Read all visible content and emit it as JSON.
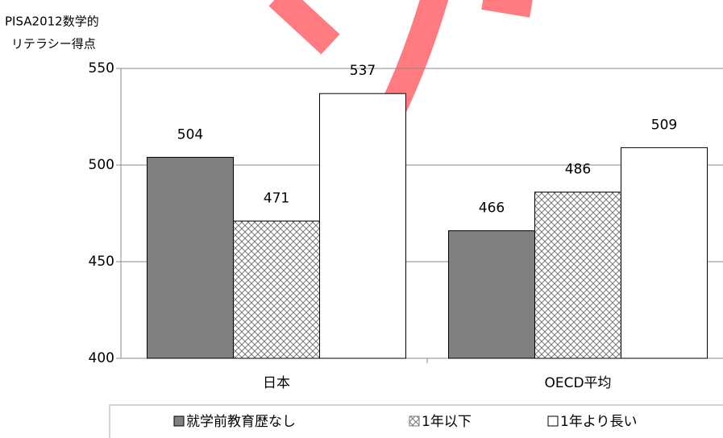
{
  "chart_data": {
    "type": "bar",
    "y_label_lines": [
      "PISA2012数学的",
      "リテラシー得点"
    ],
    "categories": [
      "日本",
      "OECD平均"
    ],
    "series": [
      {
        "name": "就学前教育歴なし",
        "color": "#808080",
        "hatch": false,
        "values": [
          504,
          466
        ]
      },
      {
        "name": "1年以下",
        "color": "#ffffff",
        "hatch": true,
        "values": [
          471,
          486
        ]
      },
      {
        "name": "1年より長い",
        "color": "#ffffff",
        "hatch": false,
        "values": [
          537,
          509
        ]
      }
    ],
    "ylim": [
      400,
      550
    ],
    "yticks": [
      400,
      450,
      500,
      550
    ],
    "grid": true,
    "legend": "bottom"
  }
}
